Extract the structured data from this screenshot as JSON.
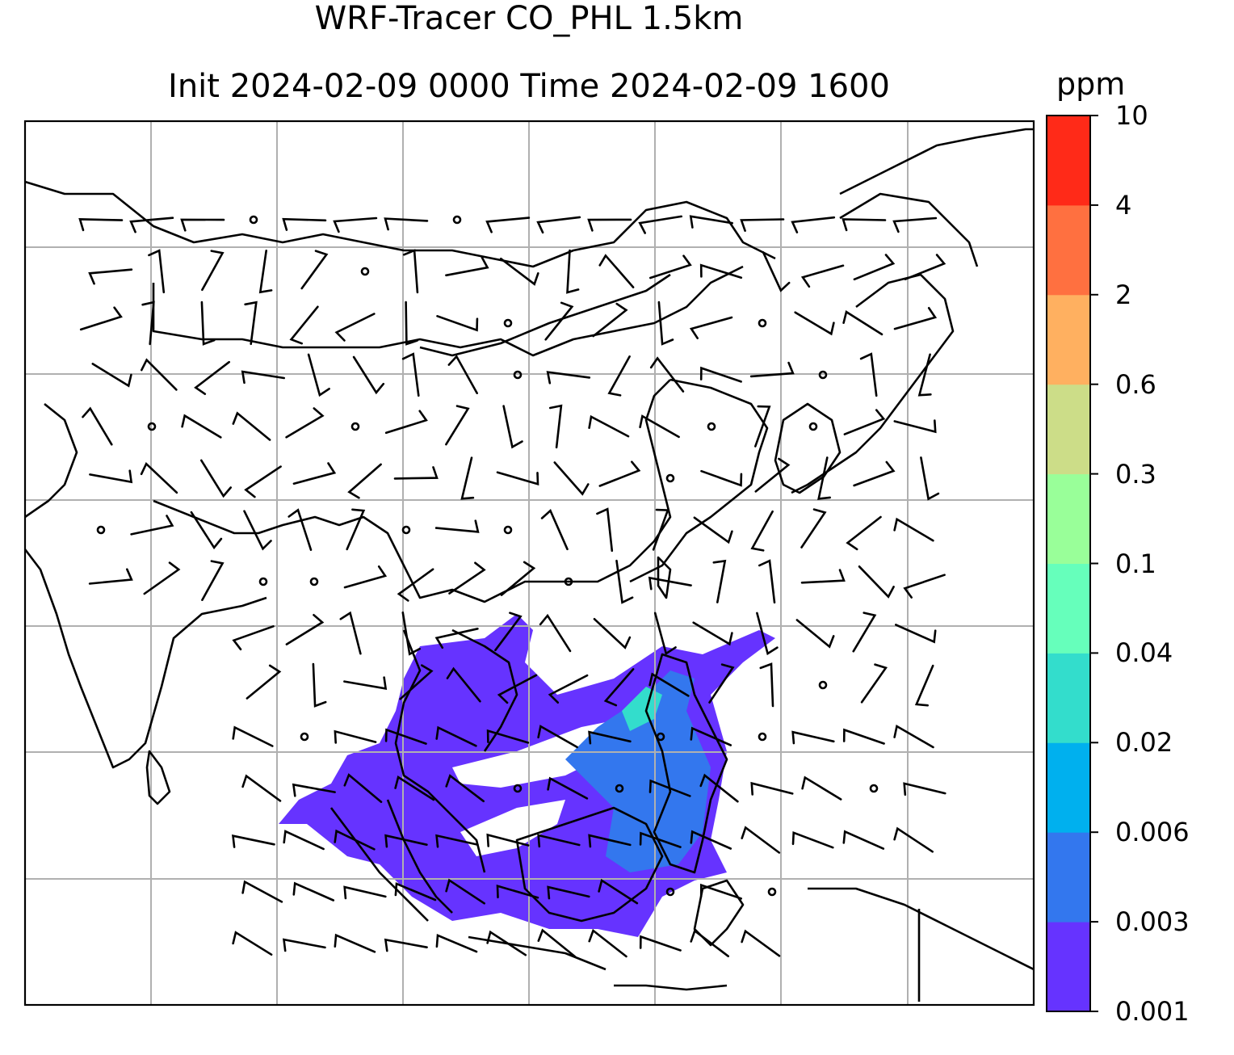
{
  "title": {
    "line1": "WRF-Tracer CO_PHL 1.5km",
    "line2": "Init 2024-02-09 0000 Time 2024-02-09 1600"
  },
  "colorbar": {
    "unit": "ppm",
    "levels": [
      "0.001",
      "0.003",
      "0.006",
      "0.02",
      "0.04",
      "0.1",
      "0.3",
      "0.6",
      "2",
      "4",
      "10"
    ],
    "colors": [
      "#6633ff",
      "#3377ee",
      "#00b0ee",
      "#33ddcc",
      "#66ffbb",
      "#99ff99",
      "#ccdd88",
      "#ffb060",
      "#ff7040",
      "#ff2a18"
    ]
  },
  "map": {
    "region": "South and East Asia",
    "gridlines": true,
    "overlays": [
      "coastlines",
      "country borders",
      "wind barbs",
      "CO tracer concentration"
    ],
    "plume_area": "South China Sea / Indochina / Borneo / Philippines",
    "plume_level_colors": [
      "#6633ff",
      "#3377ee",
      "#33ddcc"
    ]
  }
}
